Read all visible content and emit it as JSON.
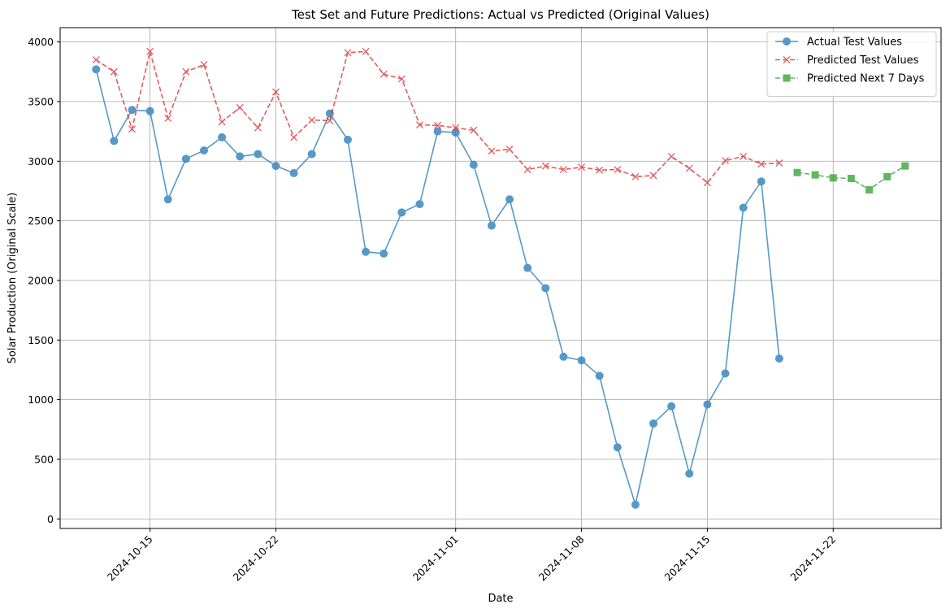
{
  "chart_data": {
    "type": "line",
    "title": "Test Set and Future Predictions: Actual vs Predicted (Original Values)",
    "xlabel": "Date",
    "ylabel": "Solar Production (Original Scale)",
    "x_type": "date",
    "xlim": [
      "2024-10-10",
      "2024-11-28"
    ],
    "ylim": [
      -80,
      4120
    ],
    "x_ticks": [
      "2024-10-15",
      "2024-10-22",
      "2024-11-01",
      "2024-11-08",
      "2024-11-15",
      "2024-11-22"
    ],
    "y_ticks": [
      0,
      500,
      1000,
      1500,
      2000,
      2500,
      3000,
      3500,
      4000
    ],
    "grid": true,
    "legend_position": "top-right",
    "series": [
      {
        "name": "Actual Test Values",
        "color": "#1f77b4",
        "line_style": "solid",
        "marker": "circle",
        "x": [
          "2024-10-12",
          "2024-10-13",
          "2024-10-14",
          "2024-10-15",
          "2024-10-16",
          "2024-10-17",
          "2024-10-18",
          "2024-10-19",
          "2024-10-20",
          "2024-10-21",
          "2024-10-22",
          "2024-10-23",
          "2024-10-24",
          "2024-10-25",
          "2024-10-26",
          "2024-10-27",
          "2024-10-28",
          "2024-10-29",
          "2024-10-30",
          "2024-10-31",
          "2024-11-01",
          "2024-11-02",
          "2024-11-03",
          "2024-11-04",
          "2024-11-05",
          "2024-11-06",
          "2024-11-07",
          "2024-11-08",
          "2024-11-09",
          "2024-11-10",
          "2024-11-11",
          "2024-11-12",
          "2024-11-13",
          "2024-11-14",
          "2024-11-15",
          "2024-11-16",
          "2024-11-17",
          "2024-11-18",
          "2024-11-19"
        ],
        "y": [
          3770,
          3170,
          3430,
          3420,
          2680,
          3020,
          3090,
          3200,
          3040,
          3060,
          2960,
          2900,
          3060,
          3400,
          3180,
          2240,
          2225,
          2570,
          2640,
          3250,
          3240,
          2970,
          2460,
          2680,
          2105,
          1935,
          1360,
          1330,
          1200,
          600,
          120,
          800,
          945,
          380,
          960,
          1220,
          2610,
          2830,
          1345
        ]
      },
      {
        "name": "Predicted Test Values",
        "color": "#d62728",
        "line_style": "dashed",
        "marker": "x",
        "x": [
          "2024-10-12",
          "2024-10-13",
          "2024-10-14",
          "2024-10-15",
          "2024-10-16",
          "2024-10-17",
          "2024-10-18",
          "2024-10-19",
          "2024-10-20",
          "2024-10-21",
          "2024-10-22",
          "2024-10-23",
          "2024-10-24",
          "2024-10-25",
          "2024-10-26",
          "2024-10-27",
          "2024-10-28",
          "2024-10-29",
          "2024-10-30",
          "2024-10-31",
          "2024-11-01",
          "2024-11-02",
          "2024-11-03",
          "2024-11-04",
          "2024-11-05",
          "2024-11-06",
          "2024-11-07",
          "2024-11-08",
          "2024-11-09",
          "2024-11-10",
          "2024-11-11",
          "2024-11-12",
          "2024-11-13",
          "2024-11-14",
          "2024-11-15",
          "2024-11-16",
          "2024-11-17",
          "2024-11-18",
          "2024-11-19"
        ],
        "y": [
          3850,
          3750,
          3270,
          3920,
          3360,
          3750,
          3810,
          3330,
          3450,
          3280,
          3580,
          3200,
          3345,
          3340,
          3910,
          3920,
          3730,
          3690,
          3305,
          3300,
          3280,
          3260,
          3085,
          3100,
          2930,
          2960,
          2930,
          2950,
          2925,
          2930,
          2870,
          2880,
          3040,
          2940,
          2820,
          3005,
          3040,
          2975,
          2985
        ]
      },
      {
        "name": "Predicted Next 7 Days",
        "color": "#2ca02c",
        "line_style": "dashed",
        "marker": "square",
        "x": [
          "2024-11-20",
          "2024-11-21",
          "2024-11-22",
          "2024-11-23",
          "2024-11-24",
          "2024-11-25",
          "2024-11-26"
        ],
        "y": [
          2905,
          2885,
          2860,
          2855,
          2760,
          2870,
          2960
        ]
      }
    ]
  }
}
